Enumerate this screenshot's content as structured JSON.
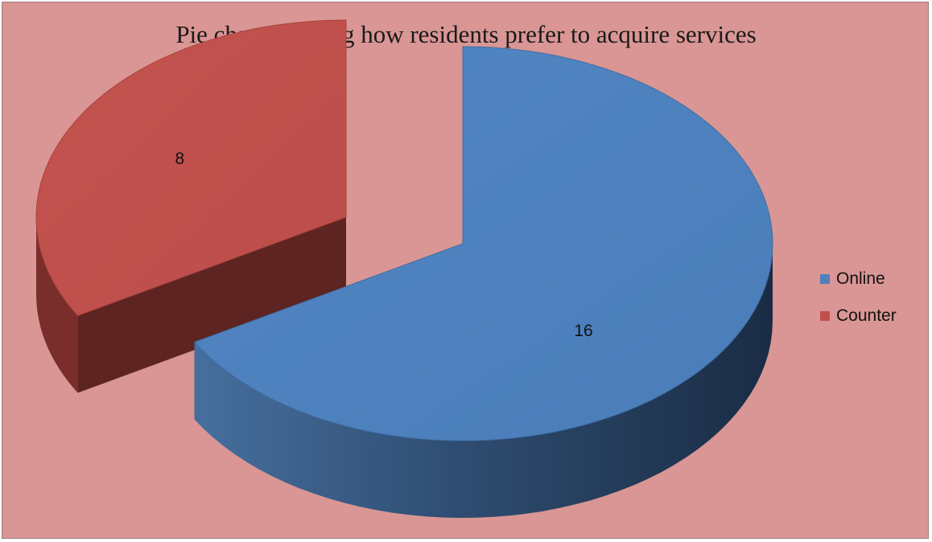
{
  "chart_data": {
    "type": "pie",
    "title": "Pie chart showing how residents prefer to acquire services",
    "slices": [
      {
        "label": "Online",
        "value": 16,
        "color": "#4f81bd",
        "dark_color": "#1f3552",
        "exploded": false
      },
      {
        "label": "Counter",
        "value": 8,
        "color": "#c0504d",
        "dark_color": "#5e2421",
        "exploded": true
      }
    ],
    "style": "3d-exploded",
    "legend_position": "right",
    "background_color": "#d99694"
  }
}
